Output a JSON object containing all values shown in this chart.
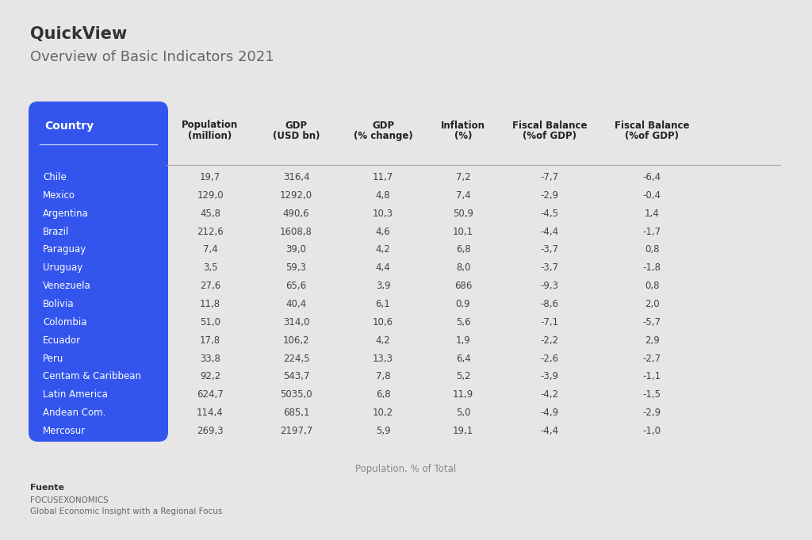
{
  "title_bold": "QuickView",
  "title_light": "Overview of Basic Indicators 2021",
  "bg_color": "#e6e6e6",
  "header_bg": "#3355ee",
  "country_text_color": "#ffffff",
  "body_text_color": "#444444",
  "header_text_color": "#222222",
  "col_headers_line1": [
    "Country",
    "Population",
    "GDP",
    "GDP",
    "Inflation",
    "Fiscal Balance",
    "Fiscal Balance"
  ],
  "col_headers_line2": [
    "",
    "(million)",
    "(USD bn)",
    "(% change)",
    "(%)",
    "(%of GDP)",
    "(%of GDP)"
  ],
  "countries": [
    "Chile",
    "Mexico",
    "Argentina",
    "Brazil",
    "Paraguay",
    "Uruguay",
    "Venezuela",
    "Bolivia",
    "Colombia",
    "Ecuador",
    "Peru",
    "Centam & Caribbean",
    "Latin America",
    "Andean Com.",
    "Mercosur"
  ],
  "population": [
    "19,7",
    "129,0",
    "45,8",
    "212,6",
    "7,4",
    "3,5",
    "27,6",
    "11,8",
    "51,0",
    "17,8",
    "33,8",
    "92,2",
    "624,7",
    "114,4",
    "269,3"
  ],
  "gdp": [
    "316,4",
    "1292,0",
    "490,6",
    "1608,8",
    "39,0",
    "59,3",
    "65,6",
    "40,4",
    "314,0",
    "106,2",
    "224,5",
    "543,7",
    "5035,0",
    "685,1",
    "2197,7"
  ],
  "gdp_change": [
    "11,7",
    "4,8",
    "10,3",
    "4,6",
    "4,2",
    "4,4",
    "3,9",
    "6,1",
    "10,6",
    "4,2",
    "13,3",
    "7,8",
    "6,8",
    "10,2",
    "5,9"
  ],
  "inflation": [
    "7,2",
    "7,4",
    "50,9",
    "10,1",
    "6,8",
    "8,0",
    "686",
    "0,9",
    "5,6",
    "1,9",
    "6,4",
    "5,2",
    "11,9",
    "5,0",
    "19,1"
  ],
  "fiscal_balance1": [
    "-7,7",
    "-2,9",
    "-4,5",
    "-4,4",
    "-3,7",
    "-3,7",
    "-9,3",
    "-8,6",
    "-7,1",
    "-2,2",
    "-2,6",
    "-3,9",
    "-4,2",
    "-4,9",
    "-4,4"
  ],
  "fiscal_balance2": [
    "-6,4",
    "-0,4",
    "1,4",
    "-1,7",
    "0,8",
    "-1,8",
    "0,8",
    "2,0",
    "-5,7",
    "2,9",
    "-2,7",
    "-1,1",
    "-1,5",
    "-2,9",
    "-1,0"
  ],
  "footer_bold": "Fuente",
  "footer_line1": "FOCUSEXONOMICS",
  "footer_line2": "Global Economic Insight with a Regional Focus",
  "footnote": "Population, % of Total"
}
